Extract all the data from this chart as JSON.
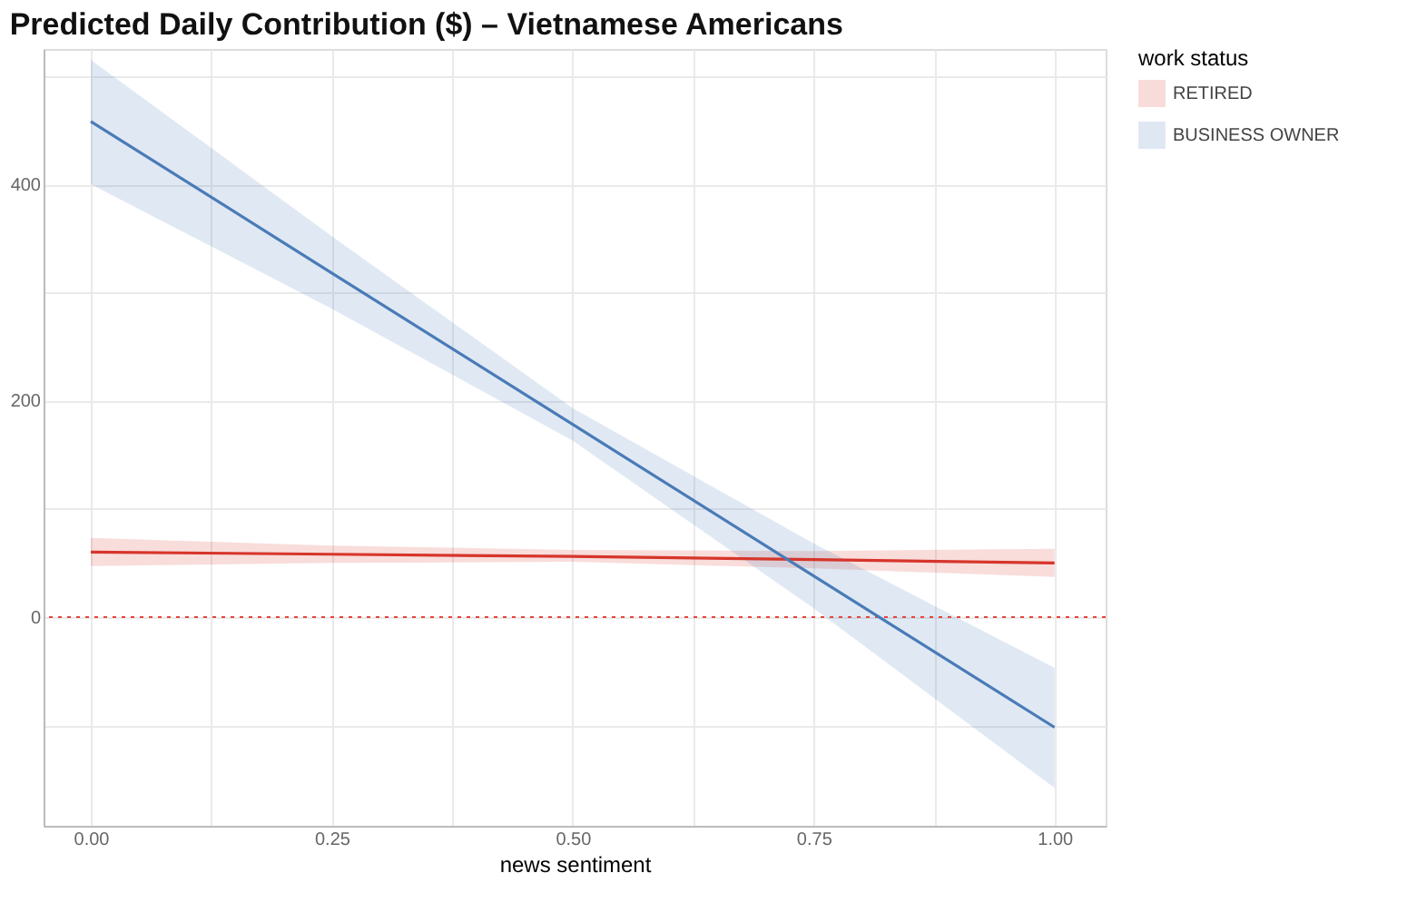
{
  "chart_data": {
    "type": "line",
    "title": "Predicted Daily Contribution ($) – Vietnamese Americans",
    "xlabel": "news sentiment",
    "legend_title": "work status",
    "x": [
      0,
      0.25,
      0.5,
      0.75,
      1
    ],
    "series": [
      {
        "name": "RETIRED",
        "color": "#d7352b",
        "values": [
          60,
          58,
          56,
          53,
          50
        ],
        "lower": [
          47,
          50,
          51,
          45,
          37
        ],
        "upper": [
          73,
          66,
          62,
          61,
          63
        ]
      },
      {
        "name": "BUSINESS OWNER",
        "color": "#4a7bb8",
        "values": [
          458,
          318,
          178,
          38,
          -102
        ],
        "lower": [
          400,
          285,
          163,
          8,
          -158
        ],
        "upper": [
          515,
          352,
          193,
          68,
          -47
        ]
      }
    ],
    "xlim": [
      -0.049,
      1.053
    ],
    "ylim": [
      -193,
      525
    ],
    "xticks": [
      {
        "value": 0,
        "label": "0.00"
      },
      {
        "value": 0.125,
        "label": null
      },
      {
        "value": 0.25,
        "label": "0.25"
      },
      {
        "value": 0.375,
        "label": null
      },
      {
        "value": 0.5,
        "label": "0.50"
      },
      {
        "value": 0.625,
        "label": null
      },
      {
        "value": 0.75,
        "label": "0.75"
      },
      {
        "value": 0.875,
        "label": null
      },
      {
        "value": 1,
        "label": "1.00"
      }
    ],
    "yticks": [
      {
        "value": -100,
        "label": null
      },
      0,
      {
        "value": 100,
        "label": null
      },
      200,
      {
        "value": 300,
        "label": null
      },
      400,
      {
        "value": 500,
        "label": null
      }
    ],
    "ref_lines": [
      {
        "axis": "y",
        "value": 0,
        "color": "#e8453c",
        "line_style": "dotted"
      }
    ],
    "grid": true,
    "legend": "right",
    "marker": "none",
    "line_style": "solid"
  }
}
